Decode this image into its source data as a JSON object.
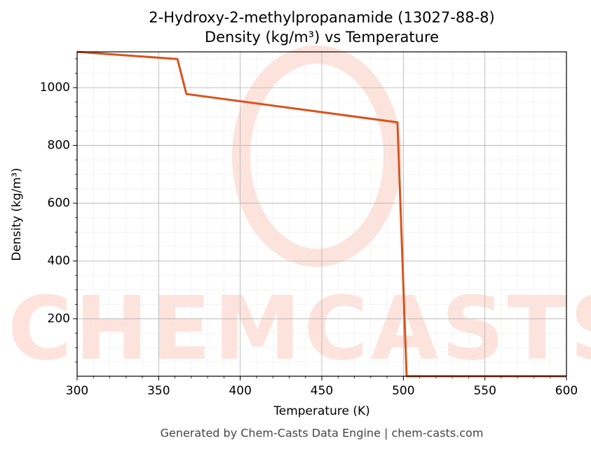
{
  "chart_data": {
    "type": "line",
    "title": "2-Hydroxy-2-methylpropanamide (13027-88-8)",
    "subtitle": "Density (kg/m³) vs Temperature",
    "x_label": "Temperature (K)",
    "y_label": "Density (kg/m³)",
    "footer": "Generated by Chem-Casts Data Engine | chem-casts.com",
    "watermark": "CHEMCASTS",
    "x": [
      300,
      361.5,
      367,
      496.4,
      502,
      600
    ],
    "series": [
      {
        "name": "Density",
        "color": "#d9531e",
        "values": [
          1124,
          1099,
          978,
          880,
          1,
          1
        ]
      }
    ],
    "xlim": [
      300,
      600
    ],
    "xticks": [
      300,
      350,
      400,
      450,
      500,
      550,
      600
    ],
    "ylim": [
      1,
      1124
    ],
    "yticks": [
      200,
      400,
      600,
      800,
      1000
    ],
    "grid": true
  }
}
